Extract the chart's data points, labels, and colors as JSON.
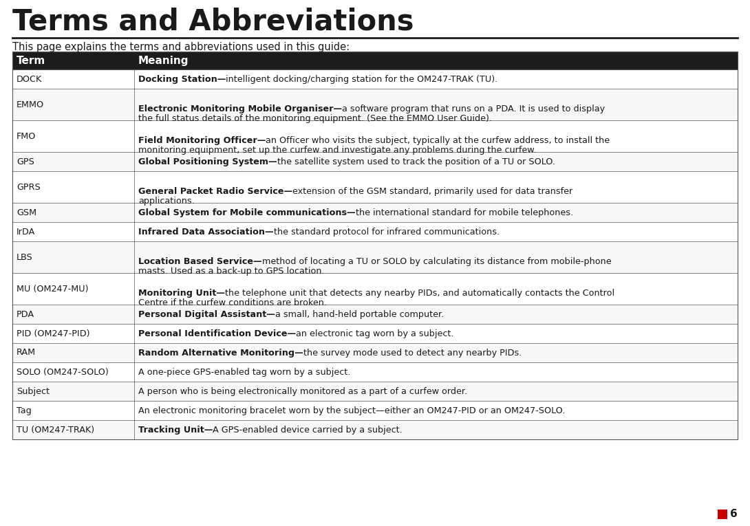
{
  "title": "Terms and Abbreviations",
  "subtitle": "This page explains the terms and abbreviations used in this guide:",
  "header": [
    "Term",
    "Meaning"
  ],
  "rows": [
    {
      "term": "DOCK",
      "bold_part": "Docking Station—",
      "rest": "intelligent docking/charging station for the OM247-TRAK (TU).",
      "lines": 1
    },
    {
      "term": "EMMO",
      "bold_part": "Electronic Monitoring Mobile Organiser—",
      "rest": "a software program that runs on a PDA. It is used to display\nthe full status details of the monitoring equipment. (See the EMMO User Guide).",
      "lines": 2
    },
    {
      "term": "FMO",
      "bold_part": "Field Monitoring Officer—",
      "rest": "an Officer who visits the subject, typically at the curfew address, to install the\nmonitoring equipment, set up the curfew and investigate any problems during the curfew.",
      "lines": 2
    },
    {
      "term": "GPS",
      "bold_part": "Global Positioning System—",
      "rest": "the satellite system used to track the position of a TU or SOLO.",
      "lines": 1
    },
    {
      "term": "GPRS",
      "bold_part": "General Packet Radio Service—",
      "rest": "extension of the GSM standard, primarily used for data transfer\napplications.",
      "lines": 2
    },
    {
      "term": "GSM",
      "bold_part": "Global System for Mobile communications—",
      "rest": "the international standard for mobile telephones.",
      "lines": 1
    },
    {
      "term": "IrDA",
      "bold_part": "Infrared Data Association—",
      "rest": "the standard protocol for infrared communications.",
      "lines": 1
    },
    {
      "term": "LBS",
      "bold_part": "Location Based Service—",
      "rest": "method of locating a TU or SOLO by calculating its distance from mobile-phone\nmasts. Used as a back-up to GPS location.",
      "lines": 2
    },
    {
      "term": "MU (OM247-MU)",
      "bold_part": "Monitoring Unit—",
      "rest": "the telephone unit that detects any nearby PIDs, and automatically contacts the Control\nCentre if the curfew conditions are broken.",
      "lines": 2
    },
    {
      "term": "PDA",
      "bold_part": "Personal Digital Assistant—",
      "rest": "a small, hand-held portable computer.",
      "lines": 1
    },
    {
      "term": "PID (OM247-PID)",
      "bold_part": "Personal Identification Device—",
      "rest": "an electronic tag worn by a subject.",
      "lines": 1
    },
    {
      "term": "RAM",
      "bold_part": "Random Alternative Monitoring—",
      "rest": "the survey mode used to detect any nearby PIDs.",
      "lines": 1
    },
    {
      "term": "SOLO (OM247-SOLO)",
      "bold_part": "",
      "rest": "A one-piece GPS-enabled tag worn by a subject.",
      "lines": 1
    },
    {
      "term": "Subject",
      "bold_part": "",
      "rest": "A person who is being electronically monitored as a part of a curfew order.",
      "lines": 1
    },
    {
      "term": "Tag",
      "bold_part": "",
      "rest": "An electronic monitoring bracelet worn by the subject—either an OM247-PID or an OM247-SOLO.",
      "lines": 1
    },
    {
      "term": "TU (OM247-TRAK)",
      "bold_part": "Tracking Unit—",
      "rest": "A GPS-enabled device carried by a subject.",
      "lines": 1
    }
  ],
  "bg_color": "#ffffff",
  "header_bg": "#1c1c1c",
  "header_fg": "#ffffff",
  "border_color": "#555555",
  "title_color": "#1a1a1a",
  "text_color": "#1a1a1a",
  "page_num": "6",
  "page_num_color": "#cc0000"
}
